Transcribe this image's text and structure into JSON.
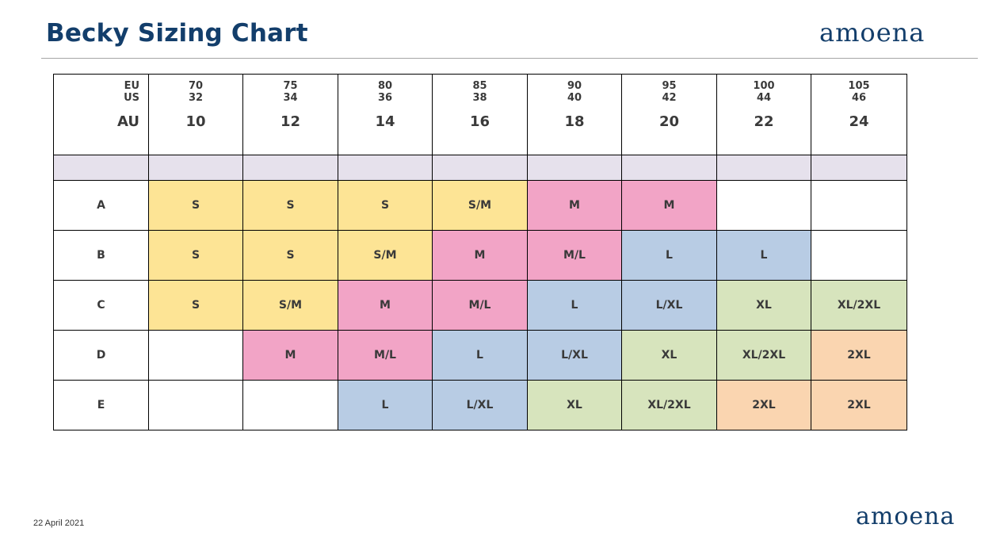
{
  "header": {
    "title": "Becky Sizing Chart",
    "logo": "amoena"
  },
  "footer": {
    "date": "22 April 2021",
    "logo": "amoena"
  },
  "colors": {
    "title": "#133e6b",
    "S": "#fde495",
    "M": "#f2a4c6",
    "L": "#b8cce4",
    "XL": "#d7e4bd",
    "2XL": "#fad5b0",
    "spacer": "#e6e1ec"
  },
  "table": {
    "corner": {
      "eu": "EU",
      "us": "US",
      "au": "AU"
    },
    "columns": [
      {
        "eu": "70",
        "us": "32",
        "au": "10"
      },
      {
        "eu": "75",
        "us": "34",
        "au": "12"
      },
      {
        "eu": "80",
        "us": "36",
        "au": "14"
      },
      {
        "eu": "85",
        "us": "38",
        "au": "16"
      },
      {
        "eu": "90",
        "us": "40",
        "au": "18"
      },
      {
        "eu": "95",
        "us": "42",
        "au": "20"
      },
      {
        "eu": "100",
        "us": "44",
        "au": "22"
      },
      {
        "eu": "105",
        "us": "46",
        "au": "24"
      }
    ],
    "rows": [
      {
        "cup": "A",
        "cells": [
          "S",
          "S",
          "S",
          "S/M",
          "M",
          "M",
          "",
          ""
        ]
      },
      {
        "cup": "B",
        "cells": [
          "S",
          "S",
          "S/M",
          "M",
          "M/L",
          "L",
          "L",
          ""
        ]
      },
      {
        "cup": "C",
        "cells": [
          "S",
          "S/M",
          "M",
          "M/L",
          "L",
          "L/XL",
          "XL",
          "XL/2XL"
        ]
      },
      {
        "cup": "D",
        "cells": [
          "",
          "M",
          "M/L",
          "L",
          "L/XL",
          "XL",
          "XL/2XL",
          "2XL"
        ]
      },
      {
        "cup": "E",
        "cells": [
          "",
          "",
          "L",
          "L/XL",
          "XL",
          "XL/2XL",
          "2XL",
          "2XL"
        ]
      }
    ]
  }
}
